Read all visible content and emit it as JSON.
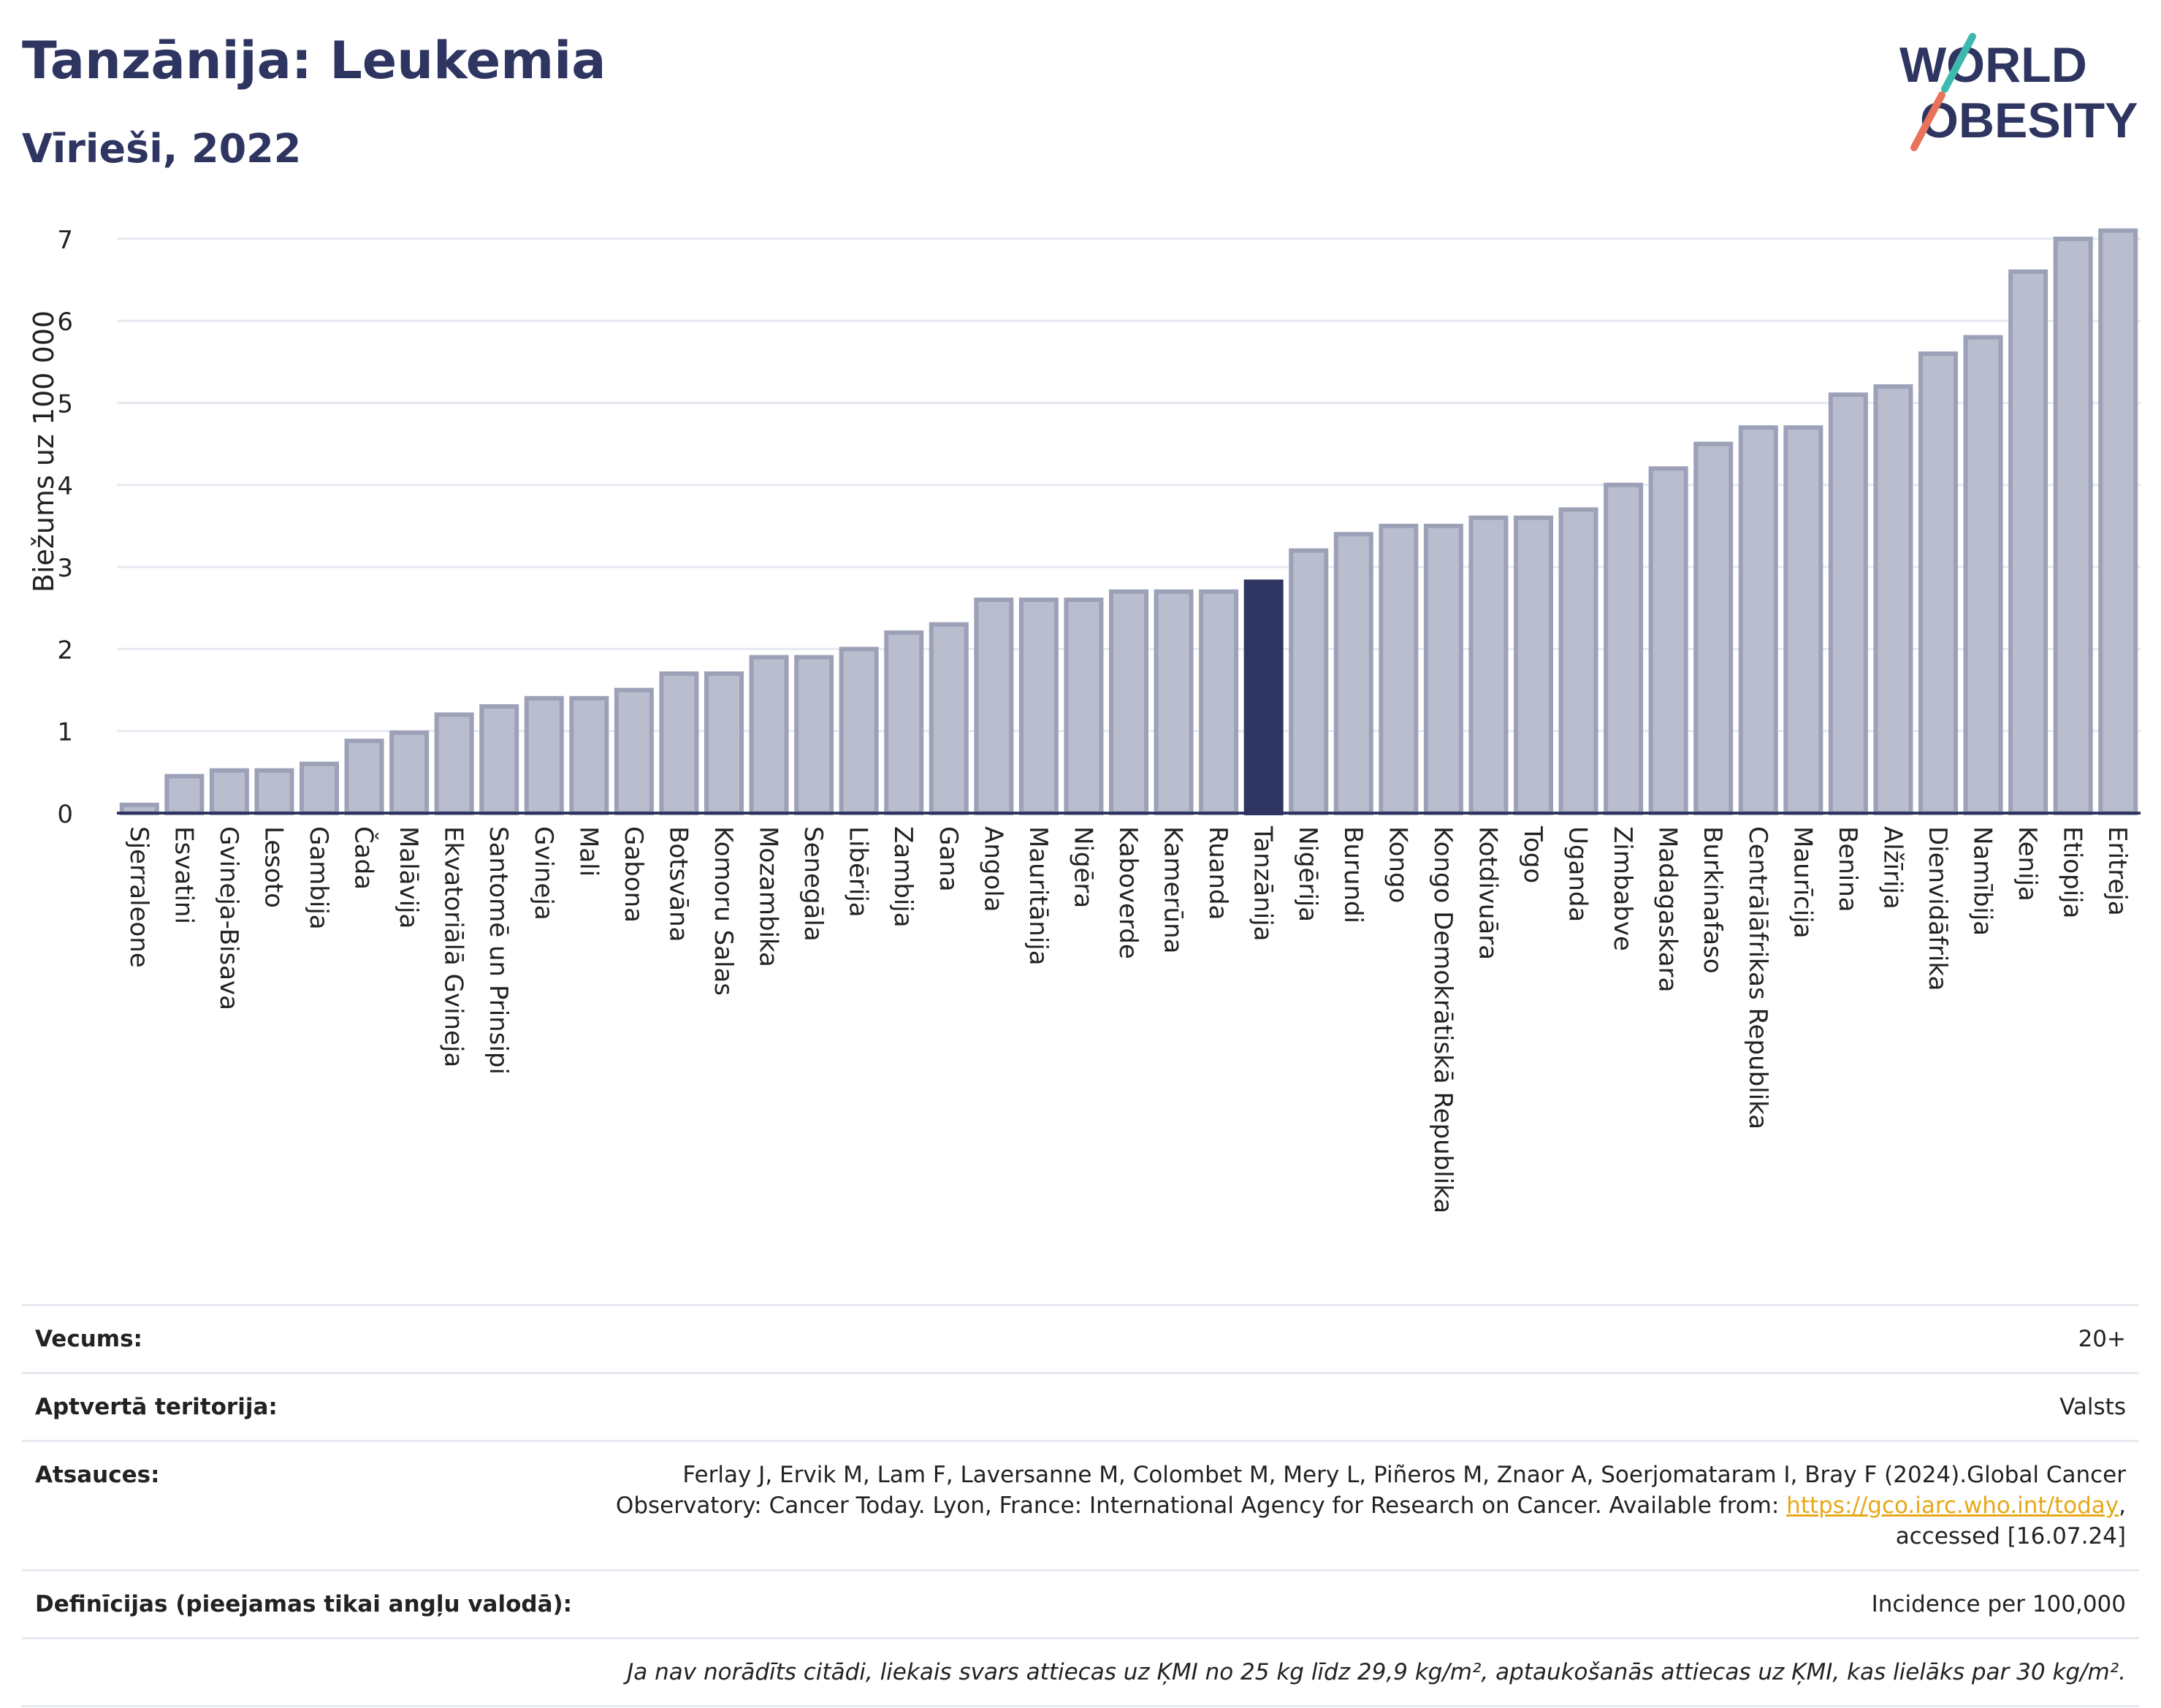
{
  "header": {
    "title": "Tanzānija: Leukemia",
    "subtitle": "Vīrieši, 2022",
    "logo_line1": "WORLD",
    "logo_line2": "OBESITY"
  },
  "chart_data": {
    "type": "bar",
    "ylabel": "Biežums uz 100 000",
    "ylim": [
      0,
      7.3
    ],
    "yticks": [
      0,
      1,
      2,
      3,
      4,
      5,
      6,
      7
    ],
    "highlight": "Tanzānija",
    "colors": {
      "bar": "#b9bdcd",
      "bar_edge": "#9ca1b8",
      "highlight": "#2d3560",
      "axis": "#2d3560",
      "grid": "#e6e9f0"
    },
    "categories": [
      "Sjerraleone",
      "Esvatini",
      "Gvineja-Bisava",
      "Lesoto",
      "Gambija",
      "Čada",
      "Malāvija",
      "Ekvatoriālā Gvineja",
      "Santomē un Prinsipi",
      "Gvineja",
      "Mali",
      "Gabona",
      "Botsvāna",
      "Komoru Salas",
      "Mozambika",
      "Senegāla",
      "Libērija",
      "Zambija",
      "Gana",
      "Angola",
      "Mauritānija",
      "Nigēra",
      "Kaboverde",
      "Kamerūna",
      "Ruanda",
      "Tanzānija",
      "Nigērija",
      "Burundi",
      "Kongo",
      "Kongo Demokrātiskā Republika",
      "Kotdivuāra",
      "Togo",
      "Uganda",
      "Zimbabve",
      "Madagaskara",
      "Burkinafaso",
      "Centrālāfrikas Republika",
      "Maurīcija",
      "Benina",
      "Alžīrija",
      "Dienvidāfrika",
      "Namībija",
      "Kenija",
      "Etiopija",
      "Eritreja"
    ],
    "values": [
      0.1,
      0.45,
      0.52,
      0.52,
      0.6,
      0.88,
      0.98,
      1.2,
      1.3,
      1.4,
      1.4,
      1.5,
      1.7,
      1.7,
      1.9,
      1.9,
      2.0,
      2.2,
      2.3,
      2.6,
      2.6,
      2.6,
      2.7,
      2.7,
      2.7,
      2.82,
      3.2,
      3.4,
      3.5,
      3.5,
      3.6,
      3.6,
      3.7,
      4.0,
      4.2,
      4.5,
      4.7,
      4.7,
      5.1,
      5.2,
      5.6,
      5.8,
      6.6,
      7.0,
      7.1
    ]
  },
  "info": {
    "age_label": "Vecums:",
    "age_value": "20+",
    "area_label": "Aptvertā teritorija:",
    "area_value": "Valsts",
    "refs_label": "Atsauces:",
    "refs_text1": "Ferlay J, Ervik M, Lam F, Laversanne M, Colombet M, Mery L, Piñeros M, Znaor A, Soerjomataram I, Bray F (2024).Global Cancer Observatory: Cancer Today. Lyon, France: International Agency for Research on Cancer. Available from: ",
    "refs_link": "https://gco.iarc.who.int/today",
    "refs_text2": ", accessed [16.07.24]",
    "def_label": "Definīcijas (pieejamas tikai angļu valodā):",
    "def_value": "Incidence per 100,000",
    "note": "Ja nav norādīts citādi, liekais svars attiecas uz ĶMI no 25 kg līdz 29,9 kg/m², aptaukošanās attiecas uz ĶMI, kas lielāks par 30 kg/m²."
  }
}
